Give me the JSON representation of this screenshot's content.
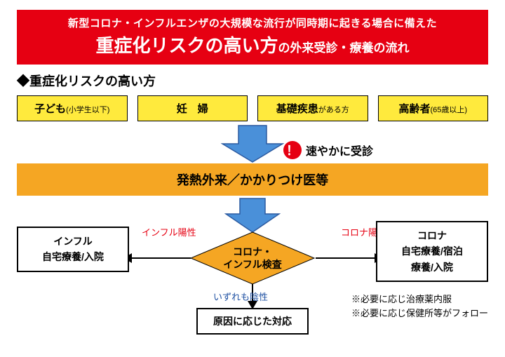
{
  "colors": {
    "banner_bg": "#e60012",
    "banner_text": "#ffffff",
    "category_bg": "#ffea3d",
    "arrow_fill": "#4a90d9",
    "arrow_stroke": "#2c5aa0",
    "alert_bg": "#e60012",
    "fever_bg": "#f5a623",
    "diamond_fill": "#f5a623",
    "edge_red": "#e60012",
    "edge_blue": "#1e50a2",
    "text": "#000000"
  },
  "header": {
    "line1": "新型コロナ・インフルエンザの大規模な流行が同時期に起きる場合に備えた",
    "line2_big": "重症化リスクの高い方",
    "line2_small": "の外来受診・療養の流れ"
  },
  "section_title": "◆重症化リスクの高い方",
  "categories": [
    {
      "main": "子ども",
      "sub": "(小学生以下)"
    },
    {
      "main": "妊　婦",
      "sub": ""
    },
    {
      "main": "基礎疾患",
      "sub2": "がある方"
    },
    {
      "main": "高齢者",
      "sub": "(65歳以上)"
    }
  ],
  "alert": {
    "mark": "！",
    "text": "速やかに受診"
  },
  "fever_bar": "発熱外来／かかりつけ医等",
  "diamond": {
    "line1": "コロナ・",
    "line2": "インフル検査"
  },
  "edges": {
    "left": "インフル陽性",
    "right": "コロナ陽性",
    "down": "いずれも陰性"
  },
  "results": {
    "left": {
      "l1": "インフル",
      "l2": "自宅療養/入院"
    },
    "right": {
      "l1": "コロナ",
      "l2": "自宅療養/宿泊",
      "l3": "療養/入院"
    },
    "bottom": "原因に応じた対応"
  },
  "notes": {
    "l1": "※必要に応じ治療薬内服",
    "l2": "※必要に応じ保健所等がフォロー"
  }
}
